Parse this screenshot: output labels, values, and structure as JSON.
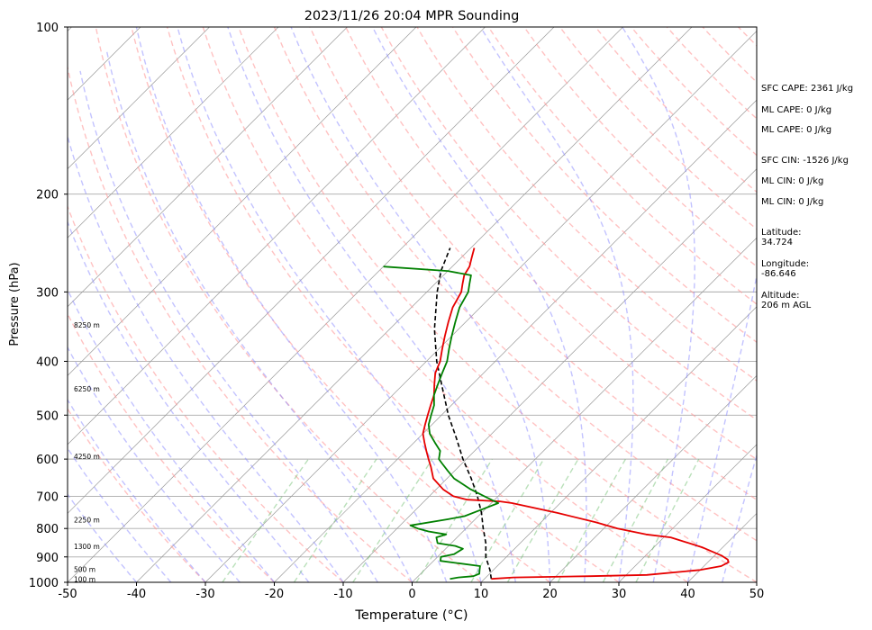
{
  "chart_data": {
    "type": "line",
    "title": "2023/11/26 20:04 MPR Sounding",
    "xlabel": "Temperature (°C)",
    "ylabel": "Pressure (hPa)",
    "xlim": [
      -50,
      50
    ],
    "ylim": [
      1000,
      100
    ],
    "y_scale": "log",
    "x_ticks": [
      -50,
      -40,
      -30,
      -20,
      -10,
      0,
      10,
      20,
      30,
      40,
      50
    ],
    "y_ticks": [
      1000,
      900,
      800,
      700,
      600,
      500,
      400,
      300,
      200,
      100
    ],
    "grid": true,
    "height_labels": [
      {
        "text": "100 m",
        "p": 990
      },
      {
        "text": "500 m",
        "p": 950
      },
      {
        "text": "1300 m",
        "p": 865
      },
      {
        "text": "2250 m",
        "p": 775
      },
      {
        "text": "4250 m",
        "p": 595
      },
      {
        "text": "6250 m",
        "p": 450
      },
      {
        "text": "8250 m",
        "p": 345
      }
    ],
    "series": [
      {
        "role": "temperature",
        "color": "#e60000",
        "points": [
          [
            986,
            11
          ],
          [
            980,
            14
          ],
          [
            975,
            25
          ],
          [
            970,
            33
          ],
          [
            950,
            40
          ],
          [
            935,
            42.5
          ],
          [
            920,
            43
          ],
          [
            910,
            42.5
          ],
          [
            895,
            41
          ],
          [
            865,
            37
          ],
          [
            830,
            31
          ],
          [
            820,
            27
          ],
          [
            800,
            22
          ],
          [
            780,
            18
          ],
          [
            750,
            11
          ],
          [
            720,
            3
          ],
          [
            715,
            1
          ],
          [
            713,
            -1
          ],
          [
            710,
            -4
          ],
          [
            700,
            -6.5
          ],
          [
            680,
            -9
          ],
          [
            650,
            -12
          ],
          [
            620,
            -14
          ],
          [
            600,
            -15.5
          ],
          [
            580,
            -17
          ],
          [
            560,
            -18.5
          ],
          [
            540,
            -20
          ],
          [
            520,
            -21
          ],
          [
            500,
            -22
          ],
          [
            480,
            -23
          ],
          [
            460,
            -24
          ],
          [
            440,
            -25.5
          ],
          [
            420,
            -27
          ],
          [
            400,
            -28
          ],
          [
            380,
            -29.5
          ],
          [
            360,
            -31
          ],
          [
            340,
            -32.5
          ],
          [
            320,
            -34
          ],
          [
            300,
            -35
          ],
          [
            290,
            -36
          ],
          [
            280,
            -37
          ],
          [
            270,
            -37.5
          ],
          [
            260,
            -38.5
          ],
          [
            250,
            -39.5
          ]
        ]
      },
      {
        "role": "dewpoint",
        "color": "#008000",
        "points": [
          [
            986,
            5
          ],
          [
            980,
            6
          ],
          [
            975,
            8
          ],
          [
            965,
            8.5
          ],
          [
            950,
            8
          ],
          [
            935,
            7.5
          ],
          [
            915,
            1
          ],
          [
            900,
            0.5
          ],
          [
            890,
            2
          ],
          [
            870,
            2.5
          ],
          [
            860,
            1
          ],
          [
            850,
            -2
          ],
          [
            830,
            -3
          ],
          [
            820,
            -2
          ],
          [
            810,
            -5
          ],
          [
            800,
            -7
          ],
          [
            790,
            -8.5
          ],
          [
            770,
            -4
          ],
          [
            760,
            -2
          ],
          [
            740,
            -0.5
          ],
          [
            720,
            1
          ],
          [
            700,
            -2
          ],
          [
            680,
            -5
          ],
          [
            650,
            -9
          ],
          [
            630,
            -11
          ],
          [
            610,
            -13
          ],
          [
            600,
            -14
          ],
          [
            580,
            -15
          ],
          [
            560,
            -17
          ],
          [
            540,
            -19
          ],
          [
            520,
            -20.5
          ],
          [
            500,
            -21.5
          ],
          [
            480,
            -22.5
          ],
          [
            460,
            -24
          ],
          [
            440,
            -25
          ],
          [
            420,
            -26
          ],
          [
            400,
            -27
          ],
          [
            380,
            -28.5
          ],
          [
            360,
            -30
          ],
          [
            340,
            -31.5
          ],
          [
            320,
            -33
          ],
          [
            300,
            -34
          ],
          [
            290,
            -35
          ],
          [
            280,
            -36
          ],
          [
            275,
            -40
          ],
          [
            270,
            -50
          ]
        ]
      }
    ],
    "parcel_profile": {
      "color": "#000000",
      "style": "dashed",
      "points": [
        [
          986,
          11
        ],
        [
          950,
          9.5
        ],
        [
          900,
          7
        ],
        [
          850,
          5
        ],
        [
          800,
          2.5
        ],
        [
          750,
          0
        ],
        [
          700,
          -3
        ],
        [
          650,
          -6.5
        ],
        [
          600,
          -10.5
        ],
        [
          550,
          -14.5
        ],
        [
          500,
          -19
        ],
        [
          450,
          -23.5
        ],
        [
          400,
          -28.5
        ],
        [
          350,
          -33.5
        ],
        [
          300,
          -38.5
        ],
        [
          275,
          -41
        ],
        [
          250,
          -43
        ]
      ]
    },
    "info_panel": [
      "SFC CAPE: 2361 J/kg",
      "ML CAPE: 0 J/kg",
      "ML CAPE: 0 J/kg",
      "SFC CIN: -1526 J/kg",
      "ML CIN: 0 J/kg",
      "ML CIN: 0 J/kg",
      "Latitude:",
      "34.724",
      "Longitude:",
      "-86.646",
      "Altitude:",
      "206 m AGL"
    ]
  }
}
